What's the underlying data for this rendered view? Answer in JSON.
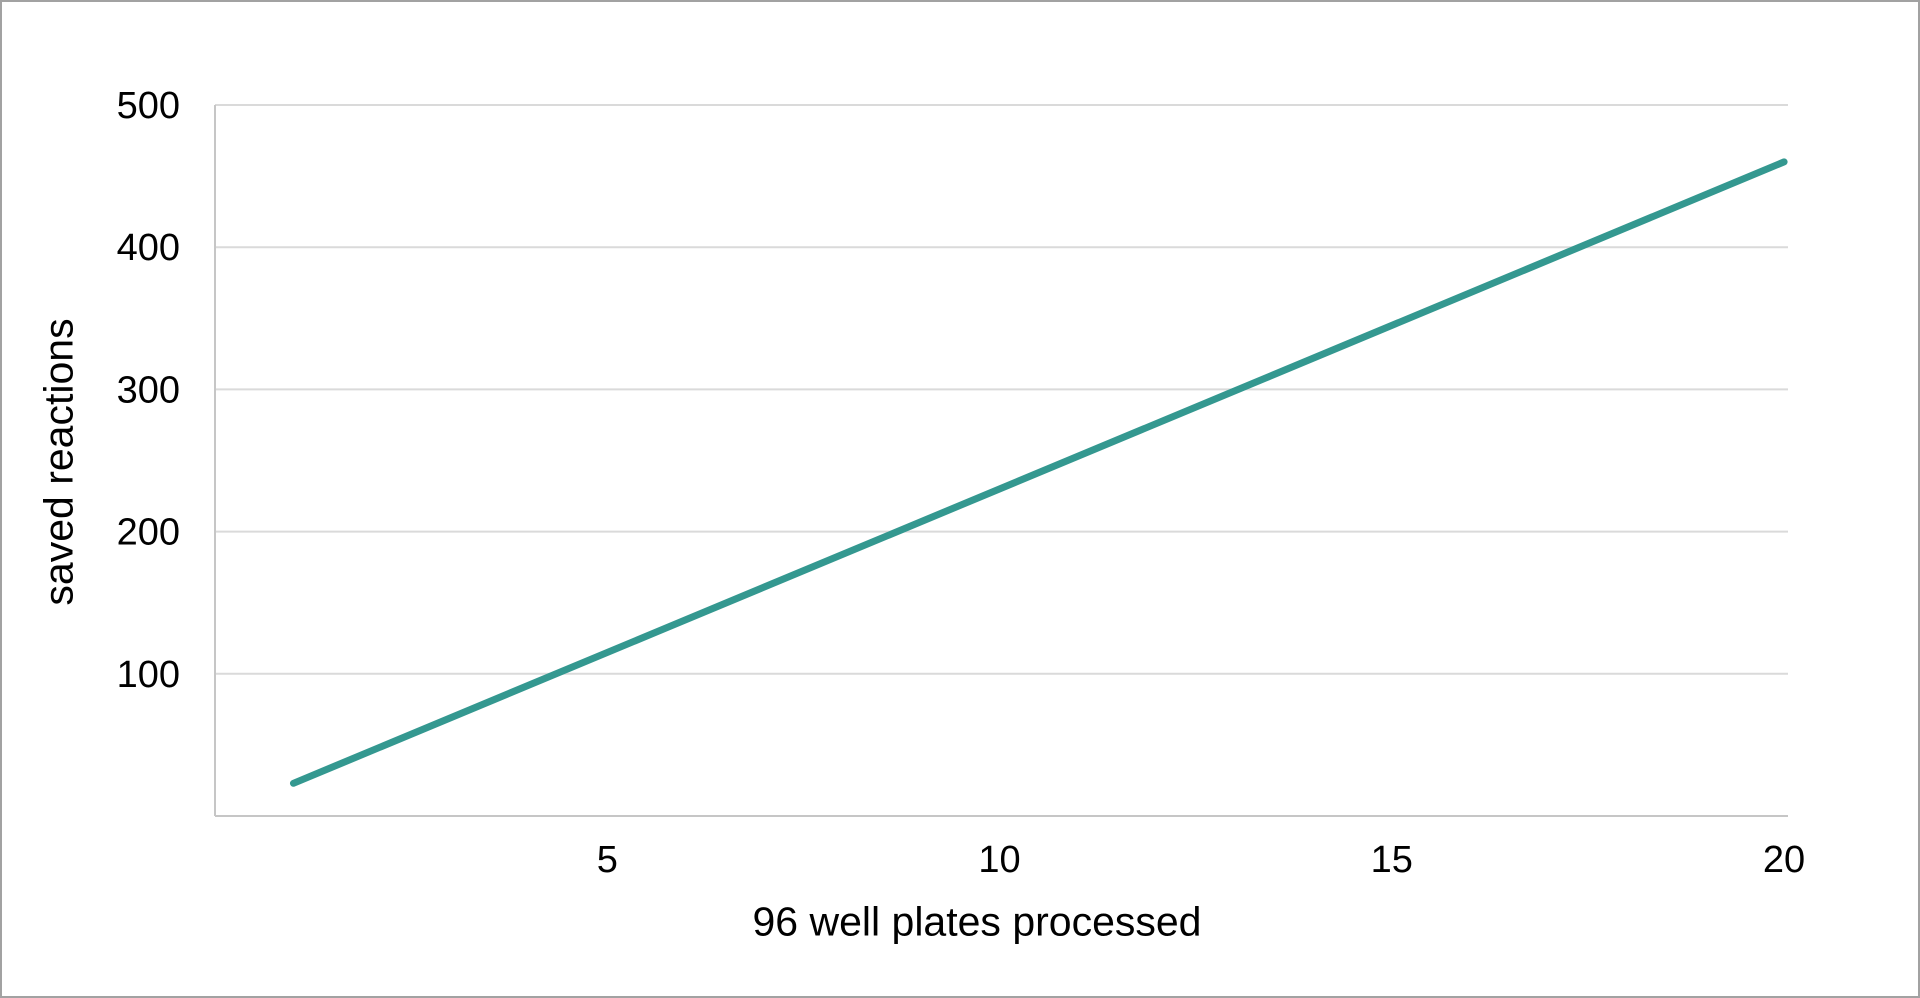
{
  "figure": {
    "background_color": "#ffffff",
    "border_color": "#a2a2a2",
    "text_color": "#000000",
    "gridline_color": "#dadada",
    "axis_line_color": "#c6c6c6"
  },
  "chart_data": {
    "type": "line",
    "title": "",
    "xlabel": "96 well plates processed",
    "ylabel": "saved reactions",
    "x_ticks": [
      5,
      10,
      15,
      20
    ],
    "y_ticks": [
      100,
      200,
      300,
      400,
      500
    ],
    "xlim": [
      0,
      20.05
    ],
    "ylim": [
      0,
      500
    ],
    "grid": "horizontal gridlines only",
    "legend": "none",
    "line_color": "#349890",
    "line_width": 7,
    "series": [
      {
        "name": "saved reactions",
        "x": [
          1,
          20
        ],
        "y": [
          23,
          460
        ],
        "note": "straight line, ~23 saved reactions per plate processed; crosses 100 near 4.5 plates and reaches ~460 at 20 plates"
      }
    ]
  }
}
